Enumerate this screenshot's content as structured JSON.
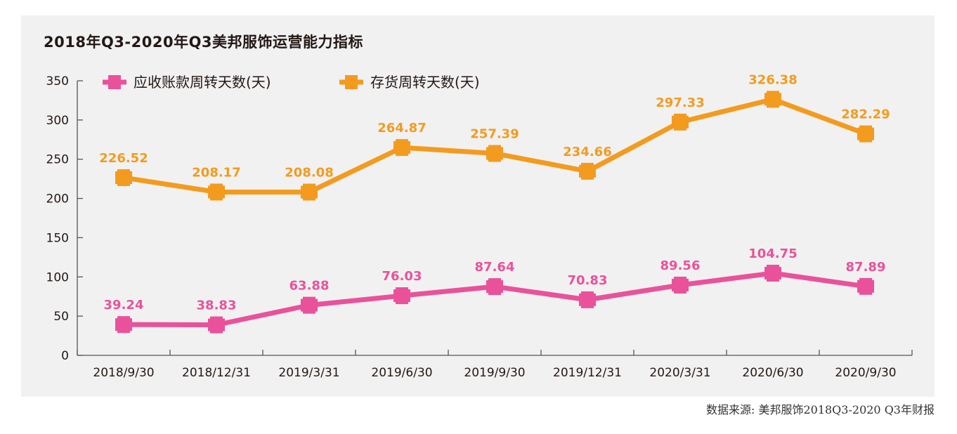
{
  "chart_data": {
    "type": "line",
    "title": "2018年Q3-2020年Q3美邦服饰运营能力指标",
    "source": "数据来源: 美邦服饰2018Q3-2020 Q3年财报",
    "categories": [
      "2018/9/30",
      "2018/12/31",
      "2019/3/31",
      "2019/6/30",
      "2019/9/30",
      "2019/12/31",
      "2020/3/31",
      "2020/6/30",
      "2020/9/30"
    ],
    "series": [
      {
        "name": "应收账款周转天数(天)",
        "color": "#e9529b",
        "values": [
          39.24,
          38.83,
          63.88,
          76.03,
          87.64,
          70.83,
          89.56,
          104.75,
          87.89
        ]
      },
      {
        "name": "存货周转天数(天)",
        "color": "#f39b1f",
        "values": [
          226.52,
          208.17,
          208.08,
          264.87,
          257.39,
          234.66,
          297.33,
          326.38,
          282.29
        ]
      }
    ],
    "ylim": [
      0,
      350
    ],
    "yticks": [
      0,
      50,
      100,
      150,
      200,
      250,
      300,
      350
    ],
    "grid": false,
    "legend": "top",
    "xlabel": "",
    "ylabel": ""
  }
}
